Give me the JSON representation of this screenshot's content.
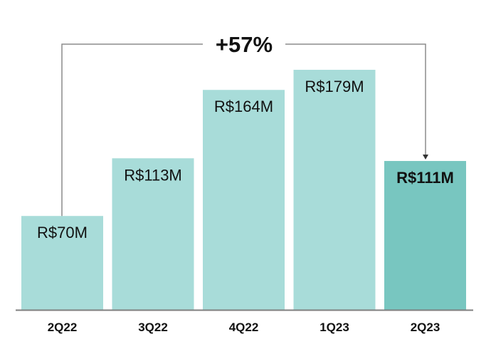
{
  "chart_data": {
    "type": "bar",
    "title": "",
    "xlabel": "",
    "ylabel": "",
    "categories": [
      "2Q22",
      "3Q22",
      "4Q22",
      "1Q23",
      "2Q23"
    ],
    "values": [
      70,
      113,
      164,
      179,
      111
    ],
    "data_labels": [
      "R$70M",
      "R$113M",
      "R$164M",
      "R$179M",
      "R$111M"
    ],
    "highlighted_index": 4,
    "ylim": [
      0,
      179
    ],
    "grid": false,
    "annotation": {
      "text": "+57%",
      "from": "2Q22",
      "to": "2Q23"
    },
    "colors": {
      "bar": "#a8dcd9",
      "highlight_bar": "#78c6c0",
      "axis": "#7f7f7f",
      "bracket": "#8c8c8c",
      "text": "#111111"
    }
  }
}
